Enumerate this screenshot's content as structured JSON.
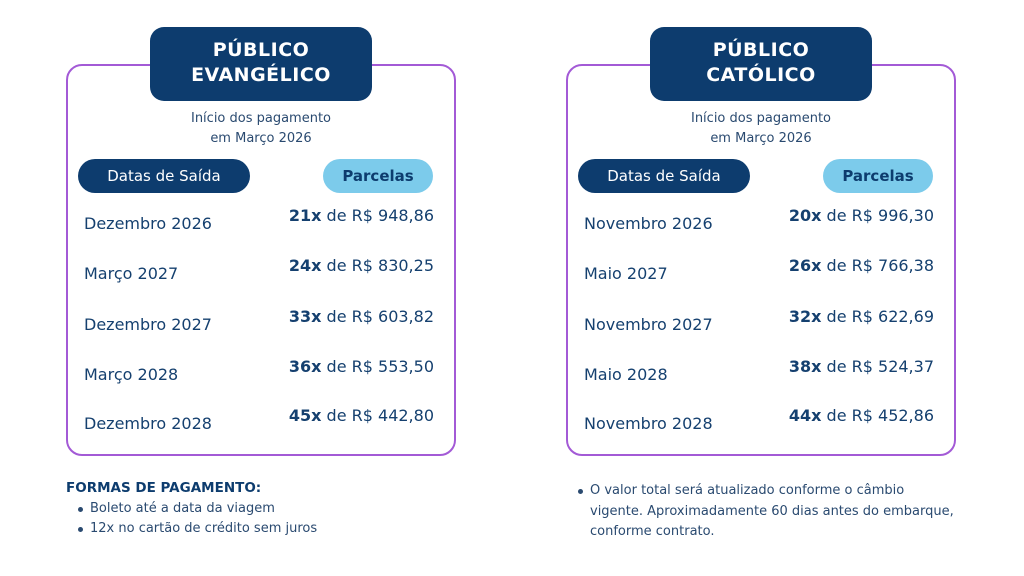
{
  "colors": {
    "navy": "#0d3c6e",
    "light_blue": "#7ccbeb",
    "border": "#a35ad6"
  },
  "panels": [
    {
      "title_line1": "PÚBLICO",
      "title_line2": "EVANGÉLICO",
      "subtitle_line1": "Início dos pagamento",
      "subtitle_line2": "em Março 2026",
      "header_dates": "Datas de Saída",
      "header_installments": "Parcelas",
      "rows": [
        {
          "date": "Dezembro 2026",
          "count": "21x",
          "amount": " de R$ 948,86"
        },
        {
          "date": "Março 2027",
          "count": "24x",
          "amount": " de R$ 830,25"
        },
        {
          "date": "Dezembro 2027",
          "count": "33x",
          "amount": " de R$ 603,82"
        },
        {
          "date": "Março 2028",
          "count": "36x",
          "amount": " de R$ 553,50"
        },
        {
          "date": "Dezembro 2028",
          "count": "45x",
          "amount": " de R$ 442,80"
        }
      ]
    },
    {
      "title_line1": "PÚBLICO",
      "title_line2": "CATÓLICO",
      "subtitle_line1": "Início dos pagamento",
      "subtitle_line2": "em Março 2026",
      "header_dates": "Datas de Saída",
      "header_installments": "Parcelas",
      "rows": [
        {
          "date": "Novembro 2026",
          "count": "20x",
          "amount": " de R$ 996,30"
        },
        {
          "date": "Maio 2027",
          "count": "26x",
          "amount": " de R$ 766,38"
        },
        {
          "date": "Novembro 2027",
          "count": "32x",
          "amount": " de R$ 622,69"
        },
        {
          "date": "Maio 2028",
          "count": "38x",
          "amount": " de R$ 524,37"
        },
        {
          "date": "Novembro 2028",
          "count": "44x",
          "amount": " de R$ 452,86"
        }
      ]
    }
  ],
  "payment": {
    "heading": "FORMAS DE PAGAMENTO:",
    "items": [
      "Boleto até a data da viagem",
      "12x no cartão de crédito sem juros"
    ]
  },
  "note": "O valor total será atualizado conforme o câmbio vigente. Aproximadamente 60 dias antes do embarque, conforme contrato."
}
